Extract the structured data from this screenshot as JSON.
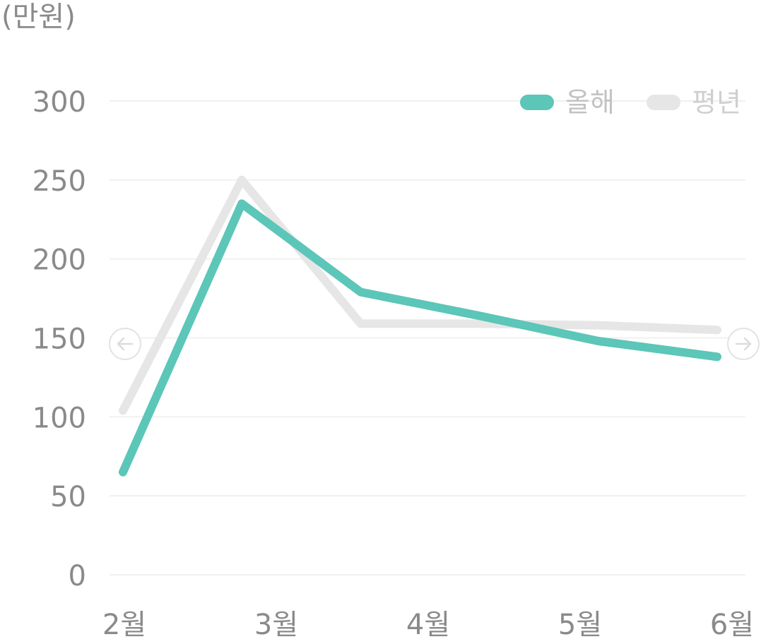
{
  "unit_label": "(만원)",
  "nav": {
    "prev_icon": "arrow-left-circle-icon",
    "next_icon": "arrow-right-circle-icon"
  },
  "colors": {
    "this_year": "#5cc6b8",
    "avg_year": "#e6e6e6",
    "legend_text_this_year": "#c2c2c2",
    "legend_text_avg_year": "#cfcfcf",
    "grid": "#f0f0f0",
    "tick_text": "#8a8a8a",
    "nav_circle": "#e3e3e3"
  },
  "chart_data": {
    "type": "line",
    "categories": [
      "2월",
      "",
      "",
      "",
      "",
      "6월"
    ],
    "x_tick_labels": [
      "2월",
      "3월",
      "4월",
      "5월",
      "6월"
    ],
    "yticks": [
      0,
      50,
      100,
      150,
      200,
      250,
      300
    ],
    "ylim": [
      0,
      300
    ],
    "grid": true,
    "legend": "top-right",
    "series": [
      {
        "name": "올해",
        "values": [
          65,
          235,
          179,
          164,
          148,
          138
        ]
      },
      {
        "name": "평년",
        "values": [
          104,
          250,
          159,
          159,
          158,
          155
        ]
      }
    ]
  }
}
